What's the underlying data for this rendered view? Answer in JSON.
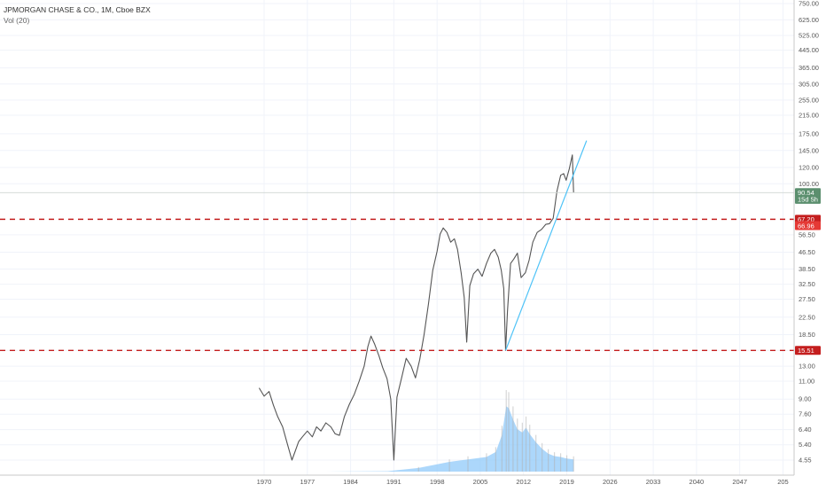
{
  "header": {
    "symbol_line": "JPMORGAN CHASE & CO., 1M, Cboe BZX",
    "indicator_line": "Vol (20)"
  },
  "colors": {
    "background": "#ffffff",
    "grid": "#f0f3fa",
    "price_line": "#555555",
    "volume_fill": "#90caf9",
    "volume_bar": "#b0b0b0",
    "support_line": "#c41e1e",
    "trendline": "#4fc3f7",
    "badge_green": "#5b8f6e",
    "badge_red": "#c41e1e"
  },
  "chart_data": {
    "type": "line",
    "scale": "log",
    "title": "JPMORGAN CHASE & CO., 1M, Cboe BZX",
    "indicator": "Vol (20)",
    "x_ticks": [
      "1970",
      "1977",
      "1984",
      "1991",
      "1998",
      "2005",
      "2012",
      "2019",
      "2026",
      "2033",
      "2040",
      "2047",
      "205"
    ],
    "y_ticks": [
      "750.00",
      "625.00",
      "525.00",
      "445.00",
      "365.00",
      "305.00",
      "255.00",
      "215.00",
      "175.00",
      "145.00",
      "120.00",
      "100.00",
      "56.50",
      "46.50",
      "38.50",
      "32.50",
      "27.50",
      "22.50",
      "18.50",
      "15.51",
      "13.00",
      "11.00",
      "9.00",
      "7.60",
      "6.40",
      "5.40",
      "4.55"
    ],
    "xlim": [
      1966.0,
      2051.0
    ],
    "series": [
      {
        "x": [
          1969.2,
          1970.0,
          1970.8,
          1971.5,
          1972.2,
          1973.0,
          1973.8,
          1974.5,
          1975.0,
          1975.6,
          1976.2,
          1977.0,
          1977.8,
          1978.5,
          1979.2,
          1980.0,
          1980.8,
          1981.5,
          1982.2,
          1983.0,
          1983.8,
          1984.6,
          1985.4,
          1986.2,
          1986.8,
          1987.3,
          1987.9,
          1988.6,
          1989.2,
          1989.9,
          1990.5,
          1991.0,
          1991.5,
          1992.2,
          1993.0,
          1993.8,
          1994.5,
          1995.2,
          1995.9,
          1996.6,
          1997.3,
          1998.0,
          1998.5,
          1999.0,
          1999.6,
          2000.2,
          2000.8,
          2001.3,
          2001.9,
          2002.4,
          2002.8,
          2003.3,
          2003.9,
          2004.6,
          2005.3,
          2006.0,
          2006.7,
          2007.3,
          2007.9,
          2008.4,
          2008.8,
          2009.1,
          2009.4,
          2009.9,
          2010.4,
          2011.0,
          2011.6,
          2012.3,
          2012.9,
          2013.5,
          2014.2,
          2014.9,
          2015.6,
          2016.2,
          2016.8,
          2017.4,
          2018.0,
          2018.5,
          2018.9,
          2019.4,
          2019.9,
          2020.1
        ],
        "values": [
          10.2,
          9.3,
          9.8,
          8.4,
          7.4,
          6.6,
          5.4,
          4.55,
          5.0,
          5.6,
          5.9,
          6.3,
          5.9,
          6.6,
          6.3,
          6.9,
          6.6,
          6.1,
          6.0,
          7.4,
          8.5,
          9.5,
          11.0,
          13.0,
          16.2,
          18.2,
          16.6,
          14.6,
          12.8,
          11.3,
          9.0,
          4.55,
          9.2,
          11.2,
          14.2,
          13.0,
          11.4,
          14.0,
          18.5,
          26.0,
          38.0,
          47.0,
          57.0,
          61.0,
          58.0,
          52.0,
          54.0,
          48.0,
          37.0,
          28.0,
          17.0,
          32.0,
          36.5,
          38.5,
          35.5,
          41.0,
          46.0,
          48.0,
          44.0,
          38.0,
          31.0,
          15.51,
          24.0,
          41.0,
          43.0,
          46.0,
          35.0,
          37.0,
          42.5,
          52.0,
          58.0,
          60.0,
          63.5,
          64.0,
          68.0,
          92.0,
          110.0,
          112.0,
          104.0,
          118.0,
          138.0,
          90.54
        ]
      }
    ],
    "volume": {
      "x": [
        1969.2,
        1980.0,
        1990.0,
        1995.0,
        2000.0,
        2003.0,
        2006.0,
        2007.5,
        2008.5,
        2009.2,
        2009.6,
        2010.3,
        2011.0,
        2011.8,
        2012.4,
        2013.0,
        2014.0,
        2015.0,
        2016.0,
        2017.0,
        2018.0,
        2019.0,
        2020.1
      ],
      "values": [
        0.0,
        0.0,
        0.05,
        0.45,
        1.2,
        1.5,
        1.8,
        2.4,
        4.5,
        8.0,
        7.8,
        6.4,
        5.2,
        4.8,
        5.4,
        4.6,
        3.6,
        2.8,
        2.2,
        1.9,
        1.8,
        1.6,
        1.5
      ]
    },
    "horizontal_levels": [
      {
        "label": "67.20",
        "value": 67.2,
        "style": "dashed",
        "color": "#c41e1e"
      },
      {
        "label": "15.51",
        "value": 15.51,
        "style": "dashed",
        "color": "#c41e1e"
      }
    ],
    "trendline": {
      "x": [
        2009.1,
        2022.2
      ],
      "values": [
        15.51,
        162.0
      ]
    },
    "price_badges": [
      {
        "label": "90.54",
        "value": 90.54,
        "color": "#5b8f6e"
      },
      {
        "label": "15d 5h",
        "value": 84.0,
        "color": "#5b8f6e"
      },
      {
        "label": "67.20",
        "value": 67.2,
        "color": "#c41e1e"
      },
      {
        "label": "66.96",
        "value": 62.6,
        "color": "#e53935"
      },
      {
        "label": "15.51",
        "value": 15.51,
        "color": "#c41e1e"
      }
    ]
  }
}
